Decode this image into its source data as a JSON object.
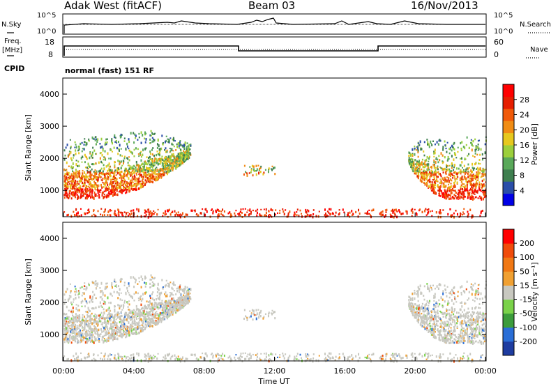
{
  "header": {
    "title": "Adak West (fitACF)",
    "beam": "Beam 03",
    "date": "16/Nov/2013"
  },
  "status_panels": {
    "noise_left_label": "N.Sky",
    "noise_right_label": "N.Search",
    "noise_left_ticks": [
      "10^5",
      "10^0"
    ],
    "noise_right_ticks": [
      "10^5",
      "10^0"
    ],
    "freq_label_top": "Freq.",
    "freq_label_unit": "[MHz]",
    "freq_ticks": [
      "18",
      "8"
    ],
    "nave_label": "Nave",
    "nave_ticks": [
      "60",
      "0"
    ],
    "cpid_label": "CPID",
    "cpid_text": "normal (fast) 151 RF"
  },
  "chart_data": [
    {
      "type": "heatmap",
      "name": "power",
      "ylabel": "Slant Range [km]",
      "xlabel": "",
      "xlim_hours": [
        0,
        24
      ],
      "ylim_km": [
        180,
        4500
      ],
      "yticks": [
        "1000",
        "2000",
        "3000",
        "4000"
      ],
      "colorbar": {
        "label": "Power [dB]",
        "ticks": [
          "28",
          "24",
          "20",
          "16",
          "12",
          "8",
          "4"
        ],
        "colors": [
          "#0000e6",
          "#2a4ea8",
          "#3f7f4f",
          "#5aa95a",
          "#9ccf3c",
          "#e6c81e",
          "#f08c14",
          "#f05a0a",
          "#e61e00",
          "#ff0000"
        ]
      }
    },
    {
      "type": "heatmap",
      "name": "velocity",
      "ylabel": "Slant Range [km]",
      "xlabel": "Time UT",
      "xlim_hours": [
        0,
        24
      ],
      "ylim_km": [
        180,
        4500
      ],
      "yticks": [
        "1000",
        "2000",
        "3000",
        "4000"
      ],
      "xticks": [
        "00:00",
        "04:00",
        "08:00",
        "12:00",
        "16:00",
        "20:00",
        "00:00"
      ],
      "colorbar": {
        "label": "Velocity [m s⁻¹]",
        "ticks": [
          "200",
          "100",
          "50",
          "15",
          "-15",
          "-50",
          "-100",
          "-200"
        ],
        "colors": [
          "#1e3ca0",
          "#2a6ed6",
          "#3c9c3c",
          "#7ad24a",
          "#c8c8c0",
          "#f0a032",
          "#f07814",
          "#f04b0a",
          "#ff0000"
        ]
      }
    }
  ]
}
